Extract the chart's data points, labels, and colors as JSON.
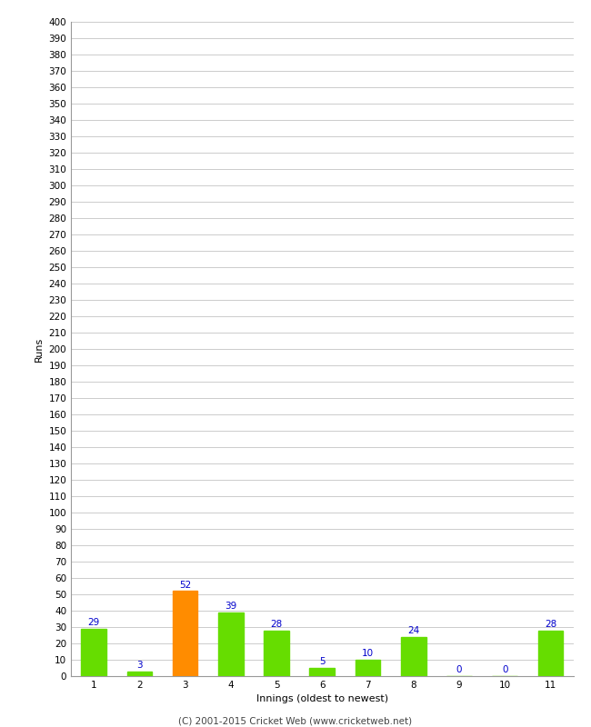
{
  "innings": [
    1,
    2,
    3,
    4,
    5,
    6,
    7,
    8,
    9,
    10,
    11
  ],
  "runs": [
    29,
    3,
    52,
    39,
    28,
    5,
    10,
    24,
    0,
    0,
    28
  ],
  "bar_colors": [
    "#66dd00",
    "#66dd00",
    "#ff8c00",
    "#66dd00",
    "#66dd00",
    "#66dd00",
    "#66dd00",
    "#66dd00",
    "#66dd00",
    "#66dd00",
    "#66dd00"
  ],
  "xlabel": "Innings (oldest to newest)",
  "ylabel": "Runs",
  "ylim": [
    0,
    400
  ],
  "yticks": [
    0,
    10,
    20,
    30,
    40,
    50,
    60,
    70,
    80,
    90,
    100,
    110,
    120,
    130,
    140,
    150,
    160,
    170,
    180,
    190,
    200,
    210,
    220,
    230,
    240,
    250,
    260,
    270,
    280,
    290,
    300,
    310,
    320,
    330,
    340,
    350,
    360,
    370,
    380,
    390,
    400
  ],
  "label_color": "#0000cc",
  "label_fontsize": 7.5,
  "axis_fontsize": 7.5,
  "xlabel_fontsize": 8,
  "ylabel_fontsize": 8,
  "footer": "(C) 2001-2015 Cricket Web (www.cricketweb.net)",
  "footer_fontsize": 7.5,
  "bg_color": "#ffffff",
  "grid_color": "#cccccc",
  "bar_width": 0.55
}
